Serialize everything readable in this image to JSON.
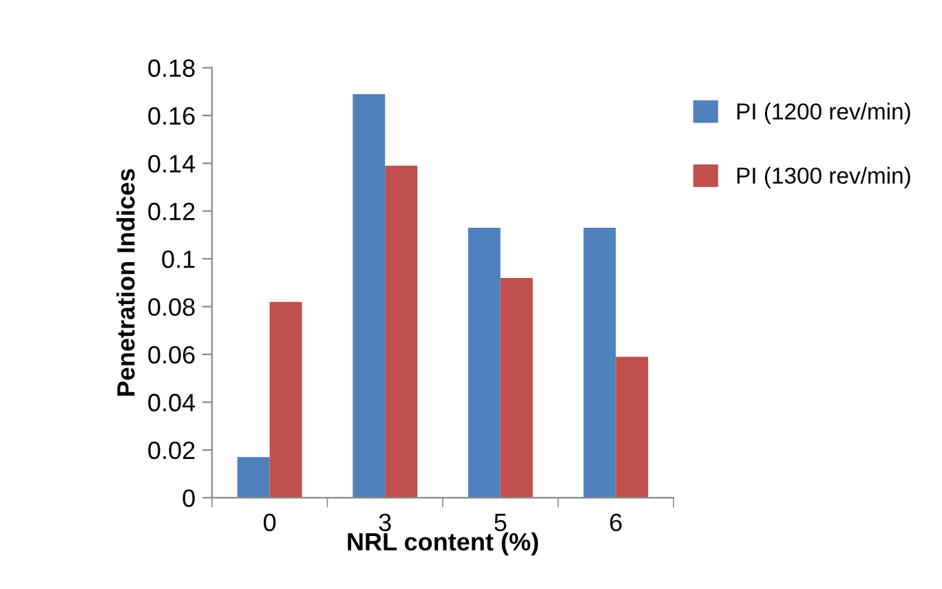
{
  "chart_data": {
    "type": "bar",
    "xlabel": "NRL content (%)",
    "ylabel": "Penetration Indices",
    "categories": [
      "0",
      "3",
      "5",
      "6"
    ],
    "series": [
      {
        "name": "PI (1200 rev/min)",
        "color": "#4f81bd",
        "values": [
          0.017,
          0.169,
          0.113,
          0.113
        ]
      },
      {
        "name": "PI (1300 rev/min)",
        "color": "#c0504d",
        "values": [
          0.082,
          0.139,
          0.092,
          0.059
        ]
      }
    ],
    "ylim": [
      0,
      0.18
    ],
    "yticks": [
      0,
      {
        "value": 0.02,
        "label": "0.02"
      },
      {
        "value": 0.04,
        "label": "0.04"
      },
      {
        "value": 0.06,
        "label": "0.06"
      },
      {
        "value": 0.08,
        "label": "0.08"
      },
      {
        "value": 0.1,
        "label": "0.1"
      },
      {
        "value": 0.12,
        "label": "0.12"
      },
      {
        "value": 0.14,
        "label": "0.14"
      },
      {
        "value": 0.16,
        "label": "0.16"
      },
      {
        "value": 0.18,
        "label": "0.18"
      }
    ],
    "legend": "top right",
    "grid": false
  }
}
